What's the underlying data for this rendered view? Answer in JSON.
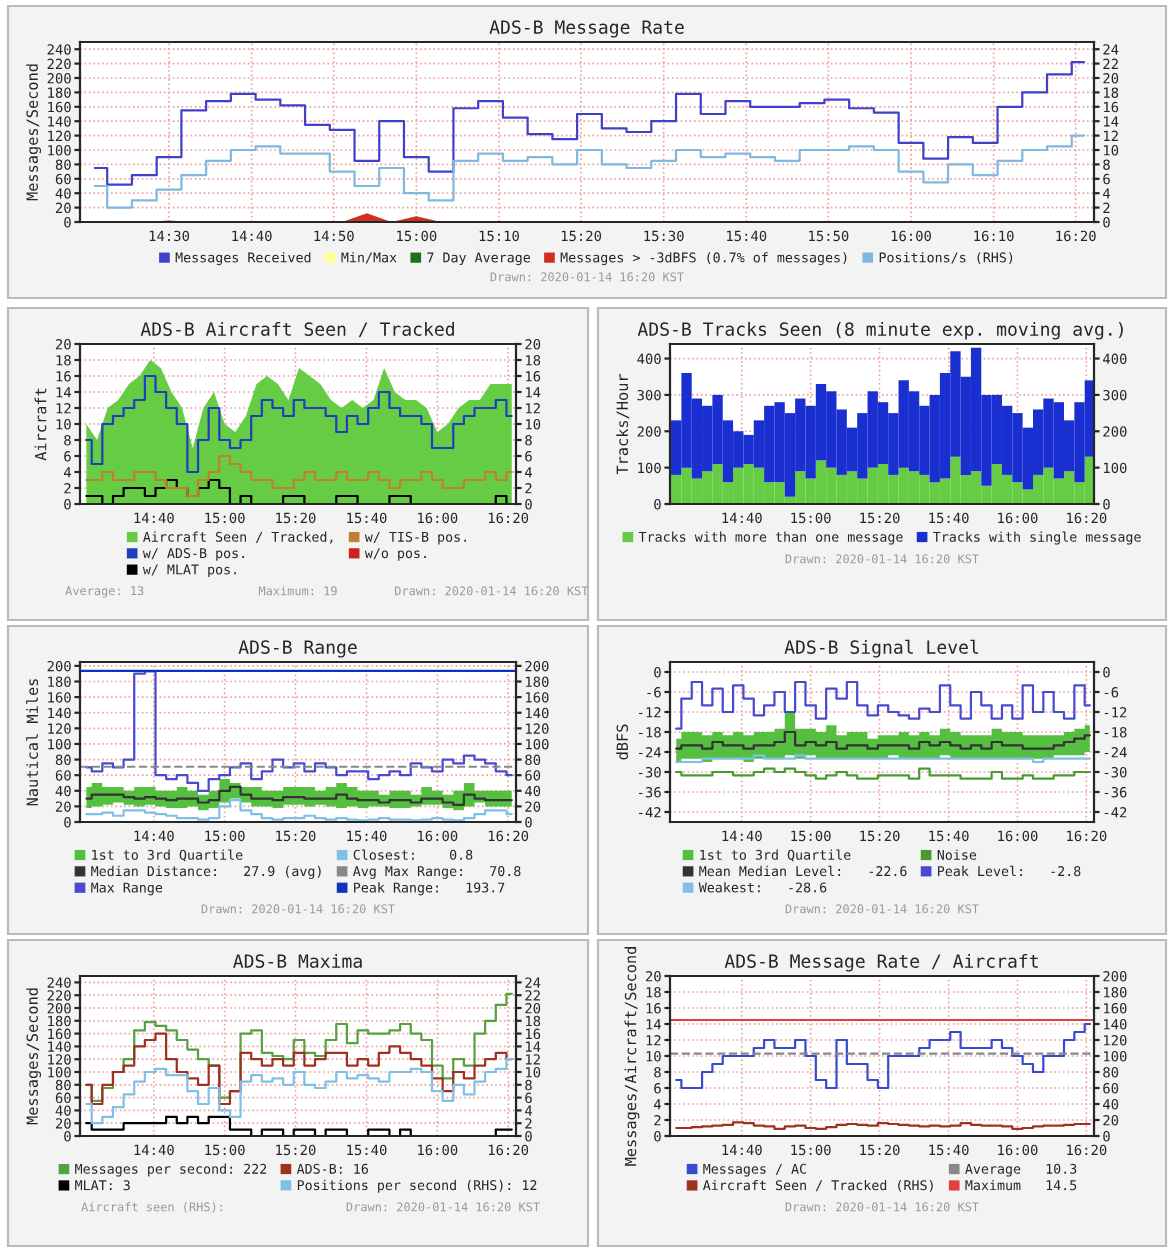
{
  "chart_data": [
    {
      "type": "step",
      "title": "ADS-B Message Rate",
      "ylabel": "Messages/Second",
      "legend": "bottom",
      "grid": true,
      "x": [
        14.35,
        14.4,
        14.45,
        14.5,
        14.55,
        14.6,
        14.65,
        14.7,
        14.75,
        14.8,
        14.85,
        14.9,
        14.95,
        15,
        15.05,
        15.1,
        15.15,
        15.2,
        15.25,
        15.3,
        15.35,
        15.4,
        15.45,
        15.5,
        15.55,
        15.6,
        15.65,
        15.7,
        15.75,
        15.8,
        15.85,
        15.9,
        15.95,
        16,
        16.05,
        16.1,
        16.15,
        16.2,
        16.25,
        16.3,
        16.35
      ],
      "xlim": [
        14.32,
        16.37
      ],
      "xticks": [
        {
          "value": 14.5,
          "label": "14:30"
        },
        {
          "value": 14.667,
          "label": "14:40"
        },
        {
          "value": 14.833,
          "label": "14:50"
        },
        {
          "value": 15,
          "label": "15:00"
        },
        {
          "value": 15.167,
          "label": "15:10"
        },
        {
          "value": 15.333,
          "label": "15:20"
        },
        {
          "value": 15.5,
          "label": "15:30"
        },
        {
          "value": 15.667,
          "label": "15:40"
        },
        {
          "value": 15.833,
          "label": "15:50"
        },
        {
          "value": 16,
          "label": "16:00"
        },
        {
          "value": 16.167,
          "label": "16:10"
        },
        {
          "value": 16.333,
          "label": "16:20"
        }
      ],
      "ylim": [
        0,
        250
      ],
      "yticks": [
        0,
        20,
        40,
        60,
        80,
        100,
        120,
        140,
        160,
        180,
        200,
        220,
        240
      ],
      "y2lim": [
        0,
        25
      ],
      "y2ticks": [
        0,
        2,
        4,
        6,
        8,
        10,
        12,
        14,
        16,
        18,
        20,
        22,
        24
      ],
      "series": [
        {
          "name": "Messages Received",
          "color": "#4040c8",
          "values": [
            75,
            52,
            65,
            90,
            155,
            168,
            178,
            170,
            162,
            135,
            128,
            85,
            140,
            90,
            70,
            158,
            168,
            145,
            122,
            115,
            150,
            130,
            125,
            140,
            178,
            150,
            168,
            160,
            160,
            165,
            170,
            158,
            152,
            110,
            88,
            118,
            110,
            160,
            180,
            205,
            222
          ]
        },
        {
          "name": "Min/Max",
          "color": "#ffff99",
          "values": [
            null,
            null,
            null,
            null,
            null,
            null,
            null,
            null,
            null,
            null,
            null,
            null,
            null,
            null,
            null,
            null,
            null,
            null,
            null,
            null,
            null,
            null,
            null,
            null,
            null,
            null,
            null,
            null,
            null,
            null,
            null,
            null,
            null,
            null,
            null,
            null,
            null,
            null,
            null,
            null,
            null
          ]
        },
        {
          "name": "7 Day Average",
          "color": "#207020",
          "values": [
            null,
            null,
            null,
            null,
            null,
            null,
            null,
            null,
            null,
            null,
            null,
            null,
            null,
            null,
            null,
            null,
            null,
            null,
            null,
            null,
            null,
            null,
            null,
            null,
            null,
            null,
            null,
            null,
            null,
            null,
            null,
            null,
            null,
            null,
            null,
            null,
            null,
            null,
            null,
            null,
            null
          ]
        },
        {
          "name": "Messages > -3dBFS (0.7% of messages)",
          "color": "#d03020",
          "type": "area",
          "values": [
            0,
            0,
            0,
            2,
            0,
            0,
            0,
            0,
            0,
            0,
            0,
            12,
            0,
            8,
            0,
            0,
            0,
            0,
            0,
            0,
            0,
            0,
            0,
            0,
            0,
            0,
            0,
            0,
            0,
            0,
            0,
            0,
            0,
            0,
            0,
            0,
            0,
            0,
            0,
            0,
            0
          ]
        },
        {
          "name": "Positions/s (RHS)",
          "color": "#80b8e0",
          "axis": "y2",
          "values": [
            5,
            2,
            3,
            4.5,
            6.5,
            8.5,
            10,
            10.5,
            9.5,
            9.5,
            7,
            5,
            7.5,
            4,
            3,
            8.5,
            9.5,
            8.5,
            9,
            8,
            10,
            8,
            7.5,
            8.5,
            10,
            9,
            9.5,
            9,
            8.5,
            10,
            10,
            10.5,
            10,
            7,
            5.5,
            8,
            6.5,
            8.5,
            10,
            10.5,
            12
          ]
        }
      ],
      "annotations": [
        "Drawn: 2020-01-14 16:20 KST"
      ]
    },
    {
      "type": "step",
      "title": "ADS-B Aircraft Seen / Tracked",
      "ylabel": "Aircraft",
      "legend": "bottom",
      "grid": true,
      "x": [
        14.35,
        14.4,
        14.45,
        14.5,
        14.55,
        14.6,
        14.65,
        14.7,
        14.75,
        14.8,
        14.85,
        14.9,
        14.95,
        15,
        15.05,
        15.1,
        15.15,
        15.2,
        15.25,
        15.3,
        15.35,
        15.4,
        15.45,
        15.5,
        15.55,
        15.6,
        15.65,
        15.7,
        15.75,
        15.8,
        15.85,
        15.9,
        15.95,
        16,
        16.05,
        16.1,
        16.15,
        16.2,
        16.25,
        16.3,
        16.35
      ],
      "xlim": [
        14.32,
        16.37
      ],
      "xticks": [
        {
          "value": 14.667,
          "label": "14:40"
        },
        {
          "value": 15,
          "label": "15:00"
        },
        {
          "value": 15.333,
          "label": "15:20"
        },
        {
          "value": 15.667,
          "label": "15:40"
        },
        {
          "value": 16,
          "label": "16:00"
        },
        {
          "value": 16.333,
          "label": "16:20"
        }
      ],
      "ylim": [
        0,
        20
      ],
      "yticks": [
        0,
        2,
        4,
        6,
        8,
        10,
        12,
        14,
        16,
        18,
        20
      ],
      "y2lim": [
        0,
        20
      ],
      "y2ticks": [
        0,
        2,
        4,
        6,
        8,
        10,
        12,
        14,
        16,
        18,
        20
      ],
      "series": [
        {
          "name": "Aircraft Seen / Tracked,",
          "color": "#66cc44",
          "type": "area",
          "values": [
            10,
            8,
            12,
            13,
            15,
            16,
            18,
            17,
            14,
            12,
            7,
            12,
            14,
            10,
            9,
            11,
            15,
            16,
            15,
            13,
            17,
            16,
            15,
            13,
            12,
            13,
            12,
            13,
            17,
            14,
            13,
            13,
            12,
            9,
            10,
            12,
            13,
            13,
            15,
            15,
            15
          ]
        },
        {
          "name": "w/ ADS-B pos.",
          "color": "#1f3fbf",
          "values": [
            8,
            5,
            10,
            11,
            12,
            13,
            16,
            14,
            12,
            10,
            4,
            8,
            12,
            8,
            7,
            8,
            11,
            13,
            12,
            11,
            13,
            12,
            12,
            11,
            9,
            11,
            10,
            12,
            14,
            12,
            11,
            11,
            10,
            7,
            7,
            10,
            11,
            12,
            12,
            13,
            11
          ]
        },
        {
          "name": "w/ MLAT pos.",
          "color": "#000000",
          "values": [
            1,
            1,
            0,
            1,
            2,
            2,
            1,
            2,
            3,
            2,
            1,
            2,
            3,
            2,
            0,
            1,
            0,
            0,
            0,
            1,
            1,
            0,
            0,
            0,
            1,
            1,
            0,
            0,
            0,
            1,
            1,
            0,
            0,
            0,
            0,
            0,
            0,
            0,
            0,
            1,
            0
          ]
        },
        {
          "name": "w/ TIS-B pos.",
          "color": "#c08030",
          "values": [
            3,
            3,
            4,
            3,
            3,
            4,
            4,
            3,
            2,
            2,
            1,
            3,
            4,
            6,
            5,
            4,
            3,
            3,
            2,
            2,
            3,
            4,
            3,
            3,
            4,
            3,
            3,
            4,
            3,
            2,
            3,
            3,
            4,
            3,
            2,
            2,
            3,
            3,
            4,
            3,
            4
          ]
        },
        {
          "name": "w/o pos.",
          "color": "#d02020",
          "values": [
            null,
            null,
            null,
            null,
            null,
            null,
            null,
            null,
            null,
            null,
            null,
            null,
            null,
            null,
            null,
            null,
            null,
            null,
            null,
            null,
            null,
            null,
            null,
            null,
            null,
            null,
            null,
            null,
            null,
            null,
            null,
            null,
            null,
            null,
            null,
            null,
            null,
            null,
            null,
            null,
            null
          ]
        }
      ],
      "annotations": [
        "Average: 13",
        "Maximum: 19",
        "Drawn: 2020-01-14 16:20 KST"
      ]
    },
    {
      "type": "bar",
      "stacked": true,
      "title": "ADS-B Tracks Seen (8 minute exp. moving avg.)",
      "ylabel": "Tracks/Hour",
      "legend": "bottom",
      "grid": true,
      "x": [
        14.35,
        14.4,
        14.45,
        14.5,
        14.55,
        14.6,
        14.65,
        14.7,
        14.75,
        14.8,
        14.85,
        14.9,
        14.95,
        15,
        15.05,
        15.1,
        15.15,
        15.2,
        15.25,
        15.3,
        15.35,
        15.4,
        15.45,
        15.5,
        15.55,
        15.6,
        15.65,
        15.7,
        15.75,
        15.8,
        15.85,
        15.9,
        15.95,
        16,
        16.05,
        16.1,
        16.15,
        16.2,
        16.25,
        16.3,
        16.35
      ],
      "xlim": [
        14.32,
        16.37
      ],
      "xticks": [
        {
          "value": 14.667,
          "label": "14:40"
        },
        {
          "value": 15,
          "label": "15:00"
        },
        {
          "value": 15.333,
          "label": "15:20"
        },
        {
          "value": 15.667,
          "label": "15:40"
        },
        {
          "value": 16,
          "label": "16:00"
        },
        {
          "value": 16.333,
          "label": "16:20"
        }
      ],
      "ylim": [
        0,
        440
      ],
      "yticks": [
        0,
        100,
        200,
        300,
        400
      ],
      "y2lim": [
        0,
        440
      ],
      "y2ticks": [
        0,
        100,
        200,
        300,
        400
      ],
      "series": [
        {
          "name": "Tracks with more than one message",
          "color": "#66cc44",
          "values": [
            80,
            100,
            70,
            90,
            110,
            60,
            100,
            110,
            100,
            60,
            60,
            20,
            90,
            70,
            120,
            100,
            80,
            90,
            70,
            100,
            110,
            80,
            100,
            90,
            80,
            60,
            70,
            130,
            80,
            90,
            50,
            110,
            80,
            60,
            40,
            80,
            100,
            70,
            90,
            60,
            130
          ]
        },
        {
          "name": "Tracks with single message",
          "color": "#1a2fd0",
          "values": [
            150,
            260,
            220,
            180,
            190,
            170,
            100,
            80,
            130,
            210,
            220,
            230,
            200,
            200,
            210,
            210,
            180,
            120,
            180,
            210,
            170,
            170,
            240,
            220,
            190,
            240,
            290,
            290,
            270,
            340,
            250,
            190,
            190,
            190,
            170,
            180,
            190,
            210,
            140,
            220,
            210
          ]
        }
      ],
      "annotations": [
        "Drawn: 2020-01-14 16:20 KST"
      ]
    },
    {
      "type": "step",
      "title": "ADS-B Range",
      "ylabel": "Nautical Miles",
      "legend": "bottom",
      "grid": true,
      "x": [
        14.35,
        14.4,
        14.45,
        14.5,
        14.55,
        14.6,
        14.65,
        14.7,
        14.75,
        14.8,
        14.85,
        14.9,
        14.95,
        15,
        15.05,
        15.1,
        15.15,
        15.2,
        15.25,
        15.3,
        15.35,
        15.4,
        15.45,
        15.5,
        15.55,
        15.6,
        15.65,
        15.7,
        15.75,
        15.8,
        15.85,
        15.9,
        15.95,
        16,
        16.05,
        16.1,
        16.15,
        16.2,
        16.25,
        16.3,
        16.35
      ],
      "xlim": [
        14.32,
        16.37
      ],
      "xticks": [
        {
          "value": 14.667,
          "label": "14:40"
        },
        {
          "value": 15,
          "label": "15:00"
        },
        {
          "value": 15.333,
          "label": "15:20"
        },
        {
          "value": 15.667,
          "label": "15:40"
        },
        {
          "value": 16,
          "label": "16:00"
        },
        {
          "value": 16.333,
          "label": "16:20"
        }
      ],
      "ylim": [
        0,
        205
      ],
      "yticks": [
        0,
        20,
        40,
        60,
        80,
        100,
        120,
        140,
        160,
        180,
        200
      ],
      "y2lim": [
        0,
        205
      ],
      "y2ticks": [
        0,
        20,
        40,
        60,
        80,
        100,
        120,
        140,
        160,
        180,
        200
      ],
      "series": [
        {
          "name": "1st to 3rd Quartile",
          "color": "#55c040",
          "values": [
            null,
            null,
            null,
            null,
            null,
            null,
            null,
            null,
            null,
            null,
            null,
            null,
            null,
            null,
            null,
            null,
            null,
            null,
            null,
            null,
            null,
            null,
            null,
            null,
            null,
            null,
            null,
            null,
            null,
            null,
            null,
            null,
            null,
            null,
            null,
            null,
            null,
            null,
            null,
            null,
            null
          ]
        },
        {
          "name": "Median Distance:   27.9 (avg)",
          "color": "#333333",
          "values": [
            30,
            35,
            35,
            35,
            32,
            30,
            32,
            30,
            28,
            30,
            30,
            25,
            28,
            40,
            45,
            35,
            30,
            30,
            28,
            32,
            32,
            30,
            30,
            30,
            35,
            30,
            28,
            28,
            25,
            28,
            28,
            25,
            30,
            30,
            25,
            22,
            35,
            30,
            28,
            28,
            28
          ],
          "lower": [
            18,
            20,
            22,
            25,
            22,
            20,
            22,
            20,
            18,
            18,
            20,
            15,
            18,
            25,
            30,
            25,
            20,
            20,
            18,
            22,
            22,
            20,
            22,
            20,
            18,
            20,
            18,
            20,
            20,
            18,
            18,
            20,
            22,
            22,
            18,
            15,
            20,
            25,
            20,
            20,
            20
          ],
          "upper": [
            45,
            50,
            45,
            45,
            40,
            45,
            45,
            40,
            40,
            45,
            40,
            35,
            40,
            55,
            50,
            45,
            45,
            40,
            40,
            45,
            45,
            45,
            40,
            45,
            50,
            45,
            40,
            40,
            35,
            40,
            40,
            35,
            45,
            40,
            35,
            40,
            50,
            40,
            40,
            40,
            40
          ]
        },
        {
          "name": "Max Range",
          "color": "#4a4ad0",
          "values": [
            70,
            65,
            75,
            70,
            80,
            190,
            193,
            60,
            55,
            60,
            50,
            40,
            55,
            60,
            70,
            75,
            55,
            65,
            80,
            70,
            75,
            65,
            75,
            70,
            60,
            65,
            65,
            55,
            60,
            65,
            60,
            75,
            70,
            65,
            80,
            75,
            85,
            80,
            75,
            65,
            60
          ]
        },
        {
          "name": "Closest:    0.8",
          "color": "#7fc0e8",
          "values": [
            10,
            10,
            12,
            8,
            15,
            15,
            12,
            10,
            8,
            5,
            5,
            3,
            5,
            20,
            28,
            15,
            10,
            5,
            3,
            5,
            5,
            8,
            5,
            3,
            5,
            3,
            2,
            3,
            5,
            3,
            3,
            2,
            3,
            5,
            3,
            2,
            5,
            10,
            15,
            15,
            10
          ]
        }
      ],
      "ref_lines": [
        {
          "axis": "y",
          "value": 70.8,
          "label": "Avg Max Range:   70.8",
          "color": "#888888",
          "line_style": "dashed"
        },
        {
          "axis": "y",
          "value": 193.7,
          "label": "Peak Range:   193.7",
          "color": "#1030c0",
          "line_style": "solid"
        }
      ],
      "annotations": [
        "Drawn: 2020-01-14 16:20 KST"
      ]
    },
    {
      "type": "step",
      "title": "ADS-B Signal Level",
      "ylabel": "dBFS",
      "legend": "bottom",
      "grid": true,
      "x": [
        14.35,
        14.4,
        14.45,
        14.5,
        14.55,
        14.6,
        14.65,
        14.7,
        14.75,
        14.8,
        14.85,
        14.9,
        14.95,
        15,
        15.05,
        15.1,
        15.15,
        15.2,
        15.25,
        15.3,
        15.35,
        15.4,
        15.45,
        15.5,
        15.55,
        15.6,
        15.65,
        15.7,
        15.75,
        15.8,
        15.85,
        15.9,
        15.95,
        16,
        16.05,
        16.1,
        16.15,
        16.2,
        16.25,
        16.3,
        16.35
      ],
      "xlim": [
        14.32,
        16.37
      ],
      "xticks": [
        {
          "value": 14.667,
          "label": "14:40"
        },
        {
          "value": 15,
          "label": "15:00"
        },
        {
          "value": 15.333,
          "label": "15:20"
        },
        {
          "value": 15.667,
          "label": "15:40"
        },
        {
          "value": 16,
          "label": "16:00"
        },
        {
          "value": 16.333,
          "label": "16:20"
        }
      ],
      "ylim": [
        -45,
        3
      ],
      "yticks": [
        0,
        -6,
        -12,
        -18,
        -24,
        -30,
        -36,
        -42
      ],
      "y2lim": [
        -45,
        3
      ],
      "y2ticks": [
        0,
        -6,
        -12,
        -18,
        -24,
        -30,
        -36,
        -42
      ],
      "series": [
        {
          "name": "1st to 3rd Quartile",
          "color": "#55c040",
          "values": [
            null,
            null,
            null,
            null,
            null,
            null,
            null,
            null,
            null,
            null,
            null,
            null,
            null,
            null,
            null,
            null,
            null,
            null,
            null,
            null,
            null,
            null,
            null,
            null,
            null,
            null,
            null,
            null,
            null,
            null,
            null,
            null,
            null,
            null,
            null,
            null,
            null,
            null,
            null,
            null,
            null
          ]
        },
        {
          "name": "Mean Median Level:   -22.6",
          "color": "#333333",
          "values": [
            -23,
            -22,
            -22,
            -23,
            -21,
            -22,
            -22,
            -23,
            -22,
            -22,
            -21,
            -18,
            -22,
            -21,
            -22,
            -21,
            -23,
            -22,
            -22,
            -23,
            -22,
            -22,
            -22,
            -23,
            -21,
            -22,
            -21,
            -22,
            -23,
            -22,
            -23,
            -21,
            -22,
            -22,
            -23,
            -23,
            -23,
            -22,
            -21,
            -20,
            -19
          ],
          "lower": [
            -27,
            -26,
            -26,
            -27,
            -26,
            -26,
            -26,
            -27,
            -26,
            -26,
            -26,
            -25,
            -26,
            -25,
            -26,
            -26,
            -26,
            -26,
            -26,
            -26,
            -26,
            -25,
            -26,
            -26,
            -26,
            -26,
            -25,
            -26,
            -26,
            -26,
            -26,
            -26,
            -26,
            -26,
            -26,
            -26,
            -26,
            -25,
            -25,
            -25,
            -24
          ],
          "upper": [
            -20,
            -18,
            -18,
            -19,
            -18,
            -19,
            -18,
            -19,
            -18,
            -18,
            -17,
            -12,
            -17,
            -17,
            -18,
            -16,
            -19,
            -18,
            -18,
            -20,
            -19,
            -19,
            -18,
            -19,
            -18,
            -19,
            -17,
            -18,
            -19,
            -19,
            -19,
            -17,
            -18,
            -18,
            -19,
            -19,
            -19,
            -19,
            -18,
            -17,
            -16
          ]
        },
        {
          "name": "Weakest:   -28.6",
          "color": "#7fc0e8",
          "values": [
            -27,
            -27,
            -27,
            -26,
            -26,
            -26,
            -26,
            -26,
            -25,
            -26,
            -26,
            -26,
            -25,
            -26,
            -26,
            -26,
            -26,
            -26,
            -26,
            -26,
            -26,
            -26,
            -26,
            -26,
            -26,
            -26,
            -26,
            -26,
            -26,
            -26,
            -26,
            -26,
            -26,
            -26,
            -26,
            -27,
            -26,
            -26,
            -26,
            -26,
            -26
          ]
        },
        {
          "name": "Noise",
          "color": "#4a9a30",
          "values": [
            -30,
            -31,
            -31,
            -31,
            -30,
            -30,
            -31,
            -31,
            -30,
            -29,
            -30,
            -29,
            -30,
            -31,
            -32,
            -31,
            -30,
            -31,
            -32,
            -32,
            -31,
            -31,
            -31,
            -32,
            -29,
            -31,
            -31,
            -31,
            -32,
            -32,
            -32,
            -30,
            -32,
            -32,
            -31,
            -32,
            -32,
            -31,
            -31,
            -30,
            -30
          ]
        },
        {
          "name": "Peak Level:   -2.8",
          "color": "#4a4ad0",
          "values": [
            -17,
            -8,
            -3,
            -10,
            -5,
            -12,
            -4,
            -8,
            -13,
            -10,
            -6,
            -12,
            -3,
            -10,
            -14,
            -5,
            -8,
            -3,
            -10,
            -13,
            -10,
            -12,
            -13,
            -14,
            -11,
            -12,
            -4,
            -10,
            -14,
            -6,
            -10,
            -14,
            -10,
            -14,
            -4,
            -12,
            -6,
            -12,
            -14,
            -4,
            -10
          ]
        }
      ],
      "annotations": [
        "Drawn: 2020-01-14 16:20 KST"
      ]
    },
    {
      "type": "step",
      "title": "ADS-B Maxima",
      "ylabel": "Messages/Second",
      "legend": "bottom",
      "grid": true,
      "x": [
        14.35,
        14.4,
        14.45,
        14.5,
        14.55,
        14.6,
        14.65,
        14.7,
        14.75,
        14.8,
        14.85,
        14.9,
        14.95,
        15,
        15.05,
        15.1,
        15.15,
        15.2,
        15.25,
        15.3,
        15.35,
        15.4,
        15.45,
        15.5,
        15.55,
        15.6,
        15.65,
        15.7,
        15.75,
        15.8,
        15.85,
        15.9,
        15.95,
        16,
        16.05,
        16.1,
        16.15,
        16.2,
        16.25,
        16.3,
        16.35
      ],
      "xlim": [
        14.32,
        16.37
      ],
      "xticks": [
        {
          "value": 14.667,
          "label": "14:40"
        },
        {
          "value": 15,
          "label": "15:00"
        },
        {
          "value": 15.333,
          "label": "15:20"
        },
        {
          "value": 15.667,
          "label": "15:40"
        },
        {
          "value": 16,
          "label": "16:00"
        },
        {
          "value": 16.333,
          "label": "16:20"
        }
      ],
      "ylim": [
        0,
        250
      ],
      "yticks": [
        0,
        20,
        40,
        60,
        80,
        100,
        120,
        140,
        160,
        180,
        200,
        220,
        240
      ],
      "y2lim": [
        0,
        25
      ],
      "y2ticks": [
        0,
        2,
        4,
        6,
        8,
        10,
        12,
        14,
        16,
        18,
        20,
        22,
        24
      ],
      "series": [
        {
          "name": "Messages per second: 222",
          "color": "#55a040",
          "values": [
            80,
            55,
            75,
            100,
            120,
            165,
            178,
            172,
            165,
            150,
            135,
            120,
            110,
            60,
            70,
            160,
            165,
            130,
            125,
            120,
            150,
            130,
            125,
            150,
            175,
            145,
            165,
            160,
            160,
            165,
            175,
            160,
            150,
            110,
            90,
            120,
            110,
            160,
            180,
            205,
            222
          ]
        },
        {
          "name": "MLAT: 3",
          "color": "#000000",
          "axis": "y2",
          "values": [
            2,
            1,
            1,
            1,
            2,
            2,
            2,
            2,
            3,
            2,
            3,
            2,
            3,
            3,
            1,
            1,
            0,
            1,
            1,
            0,
            1,
            1,
            0,
            1,
            1,
            0,
            0,
            1,
            1,
            0,
            1,
            0,
            0,
            0,
            0,
            0,
            0,
            0,
            0,
            1,
            1
          ]
        },
        {
          "name": "ADS-B: 16",
          "color": "#a03020",
          "axis": "y2",
          "values": [
            8,
            5,
            8,
            10,
            11,
            14,
            15,
            16,
            12,
            10,
            9,
            8,
            11,
            5,
            7,
            13,
            12,
            11,
            12,
            11,
            13,
            11,
            12,
            13,
            13,
            11,
            12,
            11,
            13,
            14,
            13,
            12,
            11,
            9,
            7,
            10,
            9,
            11,
            12,
            13,
            12
          ]
        },
        {
          "name": "Positions per second (RHS): 12",
          "color": "#7fc0e8",
          "axis": "y2",
          "values": [
            5,
            2,
            3,
            4.5,
            6.5,
            8.5,
            10,
            10.5,
            9.5,
            9.5,
            7,
            5,
            7.5,
            4,
            3,
            8.5,
            9.5,
            8.5,
            9,
            8,
            10,
            8,
            7.5,
            8.5,
            10,
            9,
            9.5,
            9,
            8.5,
            10,
            10,
            10.5,
            10,
            7,
            5.5,
            8,
            6.5,
            8.5,
            10,
            10.5,
            12
          ]
        }
      ],
      "annotations": [
        "Aircraft seen (RHS):",
        "Drawn: 2020-01-14 16:20 KST"
      ]
    },
    {
      "type": "step",
      "title": "ADS-B Message Rate / Aircraft",
      "ylabel": "Messages/Aircraft/Second",
      "legend": "bottom",
      "grid": true,
      "x": [
        14.35,
        14.4,
        14.45,
        14.5,
        14.55,
        14.6,
        14.65,
        14.7,
        14.75,
        14.8,
        14.85,
        14.9,
        14.95,
        15,
        15.05,
        15.1,
        15.15,
        15.2,
        15.25,
        15.3,
        15.35,
        15.4,
        15.45,
        15.5,
        15.55,
        15.6,
        15.65,
        15.7,
        15.75,
        15.8,
        15.85,
        15.9,
        15.95,
        16,
        16.05,
        16.1,
        16.15,
        16.2,
        16.25,
        16.3,
        16.35
      ],
      "xlim": [
        14.32,
        16.37
      ],
      "xticks": [
        {
          "value": 14.667,
          "label": "14:40"
        },
        {
          "value": 15,
          "label": "15:00"
        },
        {
          "value": 15.333,
          "label": "15:20"
        },
        {
          "value": 15.667,
          "label": "15:40"
        },
        {
          "value": 16,
          "label": "16:00"
        },
        {
          "value": 16.333,
          "label": "16:20"
        }
      ],
      "ylim": [
        0,
        20
      ],
      "yticks": [
        0,
        2,
        4,
        6,
        8,
        10,
        12,
        14,
        16,
        18,
        20
      ],
      "y2lim": [
        0,
        200
      ],
      "y2ticks": [
        0,
        20,
        40,
        60,
        80,
        100,
        120,
        140,
        160,
        180,
        200
      ],
      "series": [
        {
          "name": "Messages / AC",
          "color": "#3a4ad0",
          "values": [
            7,
            6,
            6,
            8,
            9,
            10,
            10,
            10,
            11,
            12,
            11,
            11,
            12,
            10,
            7,
            6,
            12,
            9,
            9,
            7,
            6,
            10,
            10,
            10,
            11,
            12,
            12,
            13,
            11,
            11,
            11,
            12,
            11,
            10,
            9,
            8,
            10,
            10,
            12,
            13,
            14
          ]
        },
        {
          "name": "Aircraft Seen / Tracked (RHS)",
          "color": "#a03020",
          "axis": "y2",
          "values": [
            10,
            10,
            11,
            12,
            13,
            14,
            17,
            16,
            13,
            12,
            9,
            12,
            13,
            10,
            9,
            11,
            14,
            15,
            14,
            13,
            16,
            15,
            14,
            13,
            12,
            13,
            12,
            13,
            16,
            14,
            13,
            13,
            12,
            9,
            10,
            12,
            13,
            13,
            14,
            15,
            15
          ]
        }
      ],
      "ref_lines": [
        {
          "axis": "y",
          "value": 10.3,
          "label": "Average   10.3",
          "color": "#888888",
          "line_style": "dashed"
        },
        {
          "axis": "y",
          "value": 14.5,
          "label": "Maximum   14.5",
          "color": "#e04040",
          "line_style": "solid"
        }
      ],
      "annotations": [
        "Drawn: 2020-01-14 16:20 KST"
      ]
    }
  ]
}
